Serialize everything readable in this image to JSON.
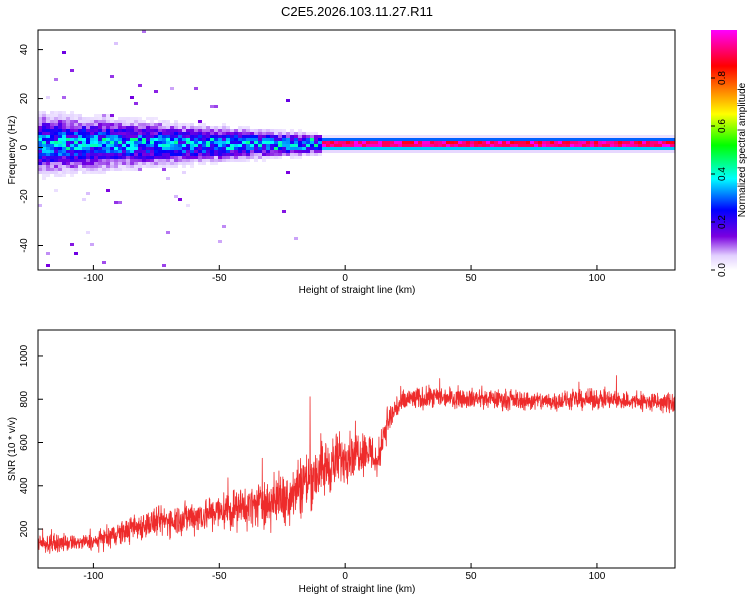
{
  "title": "C2E5.2026.103.11.27.R11",
  "colors": {
    "snr_line": "#ee2b2b",
    "axis": "#000000"
  },
  "chart_data": [
    {
      "type": "heatmap",
      "xlabel": "Height of straight line (km)",
      "ylabel": "Frequency (Hz)",
      "xlim": [
        -122,
        131
      ],
      "ylim": [
        -50,
        48
      ],
      "x_ticks": [
        -100,
        -50,
        0,
        50,
        100
      ],
      "y_ticks": [
        -40,
        -20,
        0,
        20,
        40
      ],
      "colorbar": {
        "label": "Normalized spectral amplitude",
        "range": [
          0,
          1
        ],
        "ticks": [
          "0.0",
          "0.2",
          "0.4",
          "0.6",
          "0.8"
        ],
        "colormap": "rainbow (white-violet-blue-cyan-green-yellow-red-magenta)"
      },
      "ridge": {
        "frequency_hz": 2,
        "segments": [
          {
            "x_from": -122,
            "x_to": -30,
            "peak_amplitude": 0.3
          },
          {
            "x_from": -30,
            "x_to": -10,
            "peak_amplitude": 0.45
          },
          {
            "x_from": -10,
            "x_to": 131,
            "peak_amplitude": 1.0
          }
        ]
      }
    },
    {
      "type": "line",
      "xlabel": "Height of straight line (km)",
      "ylabel": "SNR (10 * v/v)",
      "xlim": [
        -122,
        131
      ],
      "ylim": [
        20,
        1120
      ],
      "x_ticks": [
        -100,
        -50,
        0,
        50,
        100
      ],
      "y_ticks": [
        200,
        400,
        600,
        800,
        1000
      ],
      "profile": {
        "x": [
          -122,
          -100,
          -92,
          -80,
          -60,
          -40,
          -25,
          -20,
          -15,
          -10,
          -5,
          0,
          5,
          10,
          13,
          15,
          20,
          25,
          40,
          60,
          80,
          100,
          131
        ],
        "mean": [
          130,
          140,
          170,
          220,
          260,
          300,
          340,
          380,
          430,
          470,
          500,
          540,
          560,
          560,
          500,
          640,
          760,
          800,
          810,
          800,
          790,
          800,
          780
        ],
        "spread": [
          60,
          60,
          90,
          110,
          130,
          160,
          200,
          230,
          250,
          240,
          220,
          200,
          180,
          160,
          150,
          130,
          110,
          90,
          80,
          75,
          75,
          75,
          80
        ]
      }
    }
  ]
}
